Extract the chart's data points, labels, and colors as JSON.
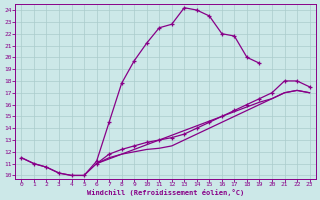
{
  "bg_color": "#cce8e8",
  "line_color": "#880088",
  "grid_color": "#aacccc",
  "xlabel": "Windchill (Refroidissement éolien,°C)",
  "xlim": [
    -0.5,
    23.5
  ],
  "ylim": [
    9.7,
    24.5
  ],
  "xticks": [
    0,
    1,
    2,
    3,
    4,
    5,
    6,
    7,
    8,
    9,
    10,
    11,
    12,
    13,
    14,
    15,
    16,
    17,
    18,
    19,
    20,
    21,
    22,
    23
  ],
  "yticks": [
    10,
    11,
    12,
    13,
    14,
    15,
    16,
    17,
    18,
    19,
    20,
    21,
    22,
    23,
    24
  ],
  "line1_x": [
    0,
    1,
    2,
    3,
    4,
    5,
    6,
    7,
    8,
    9,
    10,
    11,
    12,
    13,
    14,
    15,
    16,
    17,
    18,
    19
  ],
  "line1_y": [
    11.5,
    11.0,
    10.7,
    10.2,
    10.0,
    10.0,
    11.2,
    14.5,
    17.8,
    19.7,
    21.2,
    22.5,
    22.8,
    24.2,
    24.0,
    23.5,
    22.0,
    21.8,
    20.0,
    19.5
  ],
  "line2_x": [
    0,
    1,
    2,
    3,
    4,
    5,
    6,
    19,
    20,
    21,
    22,
    23
  ],
  "line2_y": [
    11.5,
    11.0,
    10.7,
    10.2,
    10.0,
    10.0,
    11.0,
    16.2,
    16.5,
    17.0,
    17.2,
    17.0
  ],
  "line3_x": [
    6,
    7,
    8,
    9,
    10,
    11,
    12,
    13,
    14,
    15,
    16,
    17,
    18,
    19,
    20,
    21,
    22,
    23
  ],
  "line3_y": [
    11.0,
    11.5,
    11.8,
    12.0,
    12.2,
    12.3,
    12.5,
    13.0,
    13.5,
    14.0,
    14.5,
    15.0,
    15.5,
    16.0,
    16.5,
    17.0,
    17.2,
    17.0
  ],
  "line4_x": [
    6,
    7,
    8,
    9,
    10,
    11,
    12,
    13,
    14,
    15,
    16,
    17,
    18,
    19,
    20,
    21,
    22,
    23
  ],
  "line4_y": [
    11.0,
    11.8,
    12.2,
    12.5,
    12.8,
    13.0,
    13.2,
    13.5,
    14.0,
    14.5,
    15.0,
    15.5,
    16.0,
    16.5,
    17.0,
    18.0,
    18.0,
    17.5
  ]
}
